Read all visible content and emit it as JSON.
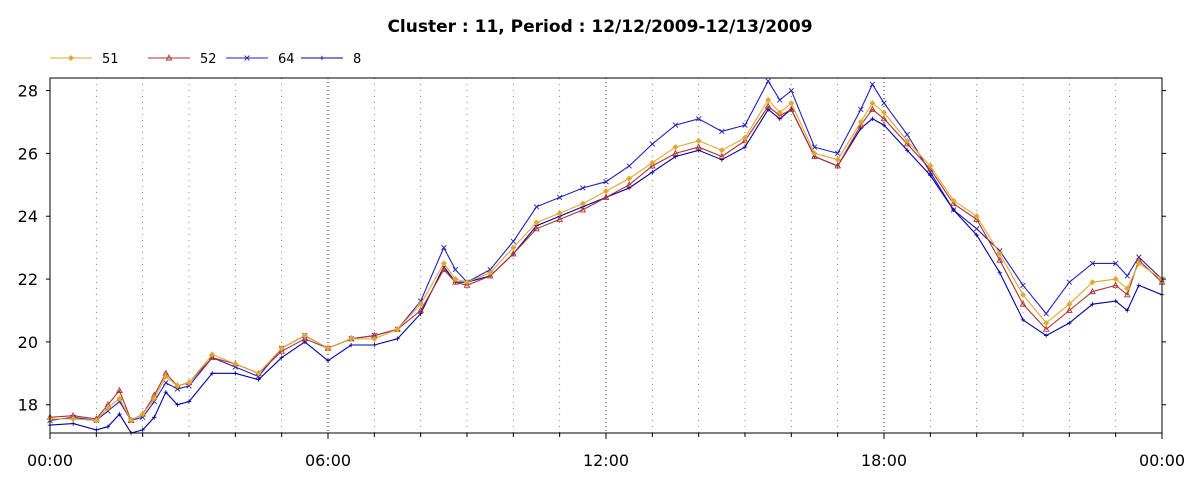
{
  "chart_data": {
    "type": "line",
    "title": "Cluster : 11, Period : 12/12/2009-12/13/2009",
    "xlabel": "",
    "ylabel": "",
    "x_tick_labels": [
      "00:00",
      "06:00",
      "12:00",
      "18:00",
      "00:00"
    ],
    "x_hours": [
      0,
      0.5,
      1,
      1.25,
      1.5,
      1.75,
      2,
      2.25,
      2.5,
      2.75,
      3,
      3.5,
      4,
      4.5,
      5,
      5.5,
      6,
      6.5,
      7,
      7.5,
      8,
      8.5,
      8.75,
      9,
      9.5,
      10,
      10.5,
      11,
      11.5,
      12,
      12.5,
      13,
      13.5,
      14,
      14.5,
      15,
      15.5,
      15.75,
      16,
      16.5,
      17,
      17.5,
      17.75,
      18,
      18.5,
      19,
      19.5,
      20,
      20.5,
      21,
      21.5,
      22,
      22.5,
      23,
      23.25,
      23.5,
      24
    ],
    "ylim": [
      17.1,
      28.4
    ],
    "yticks": [
      18,
      20,
      22,
      24,
      26,
      28
    ],
    "grid": "vertical dotted lines, major every 6h, minor every 1h",
    "legend_position": "top-left",
    "series": [
      {
        "name": "51",
        "color": "#e0a830",
        "marker": "diamond",
        "values": [
          17.55,
          17.55,
          17.5,
          17.9,
          18.2,
          17.5,
          17.7,
          18.2,
          18.9,
          18.6,
          18.7,
          19.6,
          19.3,
          19.0,
          19.8,
          20.2,
          19.8,
          20.1,
          20.1,
          20.4,
          21.2,
          22.5,
          22.0,
          21.9,
          22.2,
          23.0,
          23.8,
          24.1,
          24.4,
          24.8,
          25.2,
          25.7,
          26.2,
          26.4,
          26.1,
          26.5,
          27.7,
          27.3,
          27.6,
          26.0,
          25.8,
          27.0,
          27.6,
          27.3,
          26.4,
          25.6,
          24.5,
          24.0,
          22.8,
          21.5,
          20.6,
          21.2,
          21.9,
          22.0,
          21.7,
          22.5,
          22.0
        ]
      },
      {
        "name": "52",
        "color": "#b03030",
        "marker": "triangle",
        "values": [
          17.6,
          17.65,
          17.55,
          18.0,
          18.45,
          17.5,
          17.7,
          18.3,
          19.0,
          18.6,
          18.7,
          19.5,
          19.3,
          19.0,
          19.7,
          20.1,
          19.8,
          20.1,
          20.2,
          20.4,
          21.0,
          22.3,
          21.9,
          21.8,
          22.1,
          22.8,
          23.6,
          23.9,
          24.2,
          24.6,
          25.0,
          25.6,
          26.0,
          26.2,
          25.9,
          26.4,
          27.5,
          27.2,
          27.4,
          25.9,
          25.6,
          26.9,
          27.4,
          27.1,
          26.3,
          25.5,
          24.4,
          23.9,
          22.6,
          21.2,
          20.4,
          21.0,
          21.6,
          21.8,
          21.5,
          22.6,
          21.9
        ]
      },
      {
        "name": "64",
        "color": "#2020c0",
        "marker": "x",
        "values": [
          17.5,
          17.6,
          17.5,
          17.8,
          18.1,
          17.5,
          17.6,
          18.1,
          18.7,
          18.5,
          18.6,
          19.5,
          19.2,
          18.9,
          19.8,
          20.2,
          19.8,
          20.1,
          20.2,
          20.4,
          21.3,
          23.0,
          22.3,
          21.9,
          22.3,
          23.2,
          24.3,
          24.6,
          24.9,
          25.1,
          25.6,
          26.3,
          26.9,
          27.1,
          26.7,
          26.9,
          28.3,
          27.7,
          28.0,
          26.2,
          26.0,
          27.4,
          28.2,
          27.6,
          26.6,
          25.4,
          24.2,
          23.6,
          22.9,
          21.8,
          20.9,
          21.9,
          22.5,
          22.5,
          22.1,
          22.7,
          22.0
        ]
      },
      {
        "name": "8",
        "color": "#0000a0",
        "marker": "plus",
        "values": [
          17.35,
          17.4,
          17.2,
          17.3,
          17.7,
          17.1,
          17.2,
          17.6,
          18.4,
          18.0,
          18.1,
          19.0,
          19.0,
          18.8,
          19.5,
          20.0,
          19.4,
          19.9,
          19.9,
          20.1,
          20.9,
          22.4,
          21.9,
          21.9,
          22.1,
          22.8,
          23.7,
          24.0,
          24.3,
          24.6,
          24.9,
          25.4,
          25.9,
          26.1,
          25.8,
          26.2,
          27.4,
          27.1,
          27.4,
          25.9,
          25.6,
          26.8,
          27.1,
          26.9,
          26.1,
          25.3,
          24.2,
          23.4,
          22.2,
          20.7,
          20.2,
          20.6,
          21.2,
          21.3,
          21.0,
          21.8,
          21.5
        ]
      }
    ]
  }
}
